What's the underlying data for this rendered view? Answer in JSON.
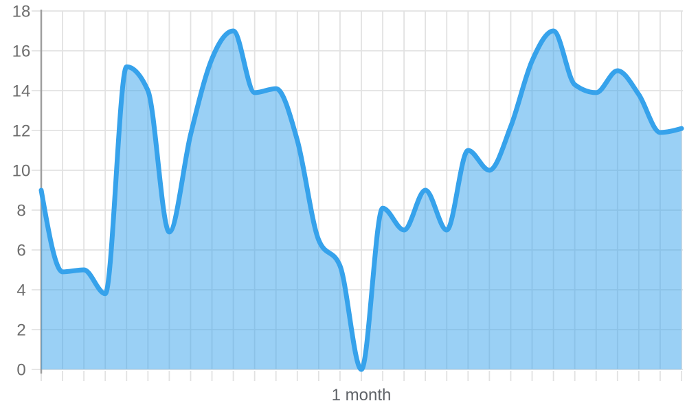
{
  "chart_data": {
    "type": "area",
    "title": "",
    "xlabel": "1 month",
    "ylabel": "",
    "x_unit": "day",
    "x": [
      0,
      1,
      2,
      3,
      4,
      5,
      6,
      7,
      8,
      9,
      10,
      11,
      12,
      13,
      14,
      15,
      16,
      17,
      18,
      19,
      20,
      21,
      22,
      23,
      24,
      25,
      26,
      27,
      28,
      29,
      30
    ],
    "values": [
      9.0,
      4.9,
      5.0,
      3.8,
      15.2,
      14.0,
      6.9,
      11.8,
      15.6,
      17.0,
      13.9,
      14.1,
      11.5,
      6.5,
      5.2,
      0.0,
      8.1,
      7.0,
      9.0,
      7.0,
      11.0,
      10.0,
      12.2,
      15.5,
      17.0,
      14.3,
      13.9,
      15.0,
      13.8,
      11.9,
      12.1
    ],
    "ylim": [
      0,
      18
    ],
    "y_ticks": [
      0,
      2,
      4,
      6,
      8,
      10,
      12,
      14,
      16,
      18
    ],
    "x_tick_count": 31,
    "grid": true,
    "legend": "none",
    "curve": "monotone"
  },
  "colors": {
    "line": "#36A2EB",
    "area_fill": "rgba(54,162,235,0.5)",
    "grid": "#e2e2e2",
    "axis_line": "#9e9e9e",
    "y_tick_label": "#6d6d6d",
    "x_label": "#5f6368",
    "background": "#ffffff"
  }
}
